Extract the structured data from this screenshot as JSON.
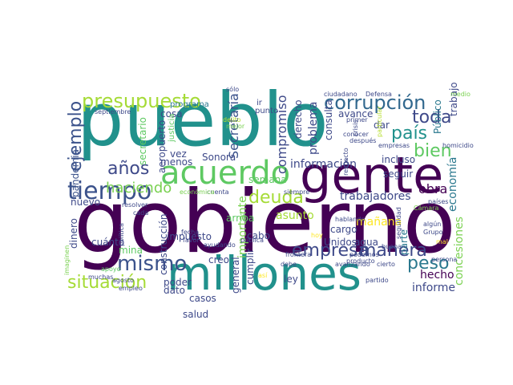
{
  "words": [
    {
      "text": "gobierno",
      "color": "#440154"
    },
    {
      "text": "pueblo",
      "color": "#21918c"
    },
    {
      "text": "millones",
      "color": "#21918c"
    },
    {
      "text": "gente",
      "color": "#440154"
    },
    {
      "text": "acuerdo",
      "color": "#5ec962"
    },
    {
      "text": "tiempo",
      "color": "#3b528b"
    },
    {
      "text": "presupuesto",
      "color": "#a5db36"
    },
    {
      "text": "corrupción",
      "color": "#31688e"
    },
    {
      "text": "mismo",
      "color": "#3b528b"
    },
    {
      "text": "empresa",
      "color": "#3e4989"
    },
    {
      "text": "manera",
      "color": "#3e4989"
    },
    {
      "text": "situación",
      "color": "#a5db36"
    },
    {
      "text": "bien",
      "color": "#5ec962"
    },
    {
      "text": "país",
      "color": "#21918c"
    },
    {
      "text": "toda",
      "color": "#3e4989"
    },
    {
      "text": "ejemplo",
      "color": "#3b528b"
    },
    {
      "text": "años",
      "color": "#3e4989"
    },
    {
      "text": "deuda",
      "color": "#a5db36"
    },
    {
      "text": "peso",
      "color": "#2a788e"
    },
    {
      "text": "haciendo",
      "color": "#7ad151"
    },
    {
      "text": "Secretaría",
      "color": "#3b528b"
    },
    {
      "text": "compromiso",
      "color": "#3e4989"
    },
    {
      "text": "obra",
      "color": "#440154"
    },
    {
      "text": "importante",
      "color": "#7ad151"
    },
    {
      "text": "trabajadores",
      "color": "#3e4989"
    },
    {
      "text": "asunto",
      "color": "#a5db36"
    },
    {
      "text": "mañana",
      "color": "#fde725"
    },
    {
      "text": "hecho",
      "color": "#440154"
    },
    {
      "text": "informe",
      "color": "#3e4989"
    },
    {
      "text": "economía",
      "color": "#2a788e"
    },
    {
      "text": "concesiones",
      "color": "#7ad151"
    },
    {
      "text": "información",
      "color": "#3e4989"
    },
    {
      "text": "problema",
      "color": "#3e4989"
    },
    {
      "text": "pandemia",
      "color": "#3b528b"
    },
    {
      "text": "secretario",
      "color": "#5ec962"
    },
    {
      "text": "aeropuerto",
      "color": "#3e4989"
    },
    {
      "text": "construcción",
      "color": "#3e4989"
    },
    {
      "text": "Sonora",
      "color": "#3e4989"
    },
    {
      "text": "seguir",
      "color": "#3e4989"
    },
    {
      "text": "trabajo",
      "color": "#3e4989"
    },
    {
      "text": "Público",
      "color": "#2a788e"
    },
    {
      "text": "incluso",
      "color": "#3e4989"
    },
    {
      "text": "nuevo",
      "color": "#3e4989"
    },
    {
      "text": "impuesto",
      "color": "#3e4989"
    },
    {
      "text": "derecho",
      "color": "#3e4989"
    },
    {
      "text": "consulta",
      "color": "#3e4989"
    },
    {
      "text": "avance",
      "color": "#3e4989"
    },
    {
      "text": "dar",
      "color": "#3e4989"
    },
    {
      "text": "creo",
      "color": "#3e4989"
    },
    {
      "text": "casos",
      "color": "#3e4989"
    },
    {
      "text": "salud",
      "color": "#3e4989"
    },
    {
      "text": "cabo",
      "color": "#3e4989"
    },
    {
      "text": "cargo",
      "color": "#3e4989"
    },
    {
      "text": "Unidos",
      "color": "#3e4989"
    },
    {
      "text": "agua",
      "color": "#3e4989"
    },
    {
      "text": "parte",
      "color": "#2a788e"
    },
    {
      "text": "vez",
      "color": "#3e4989"
    },
    {
      "text": "menos",
      "color": "#3e4989"
    },
    {
      "text": "mina",
      "color": "#5ec962"
    },
    {
      "text": "dinero",
      "color": "#3e4989"
    },
    {
      "text": "cuánto",
      "color": "#3e4989"
    },
    {
      "text": "ley",
      "color": "#3e4989"
    },
    {
      "text": "poder",
      "color": "#3e4989"
    },
    {
      "text": "dato",
      "color": "#3e4989"
    },
    {
      "text": "general",
      "color": "#3e4989"
    },
    {
      "text": "cumplir",
      "color": "#3e4989"
    },
    {
      "text": "semana",
      "color": "#5ec962"
    },
    {
      "text": "arriba",
      "color": "#5ec962"
    },
    {
      "text": "cosa",
      "color": "#3e4989"
    },
    {
      "text": "programa",
      "color": "#2a788e"
    },
    {
      "text": "ir",
      "color": "#3e4989"
    },
    {
      "text": "punto",
      "color": "#3e4989"
    },
    {
      "text": "justicia",
      "color": "#5ec962"
    },
    {
      "text": "septiembre",
      "color": "#3e4989"
    },
    {
      "text": "sólo",
      "color": "#3e4989"
    },
    {
      "text": "ciudadano",
      "color": "#3e4989"
    },
    {
      "text": "Defensa",
      "color": "#3e4989"
    },
    {
      "text": "medio",
      "color": "#7ad151"
    },
    {
      "text": "mejor",
      "color": "#7ad151"
    },
    {
      "text": "delito",
      "color": "#b5de2b"
    },
    {
      "text": "particular",
      "color": "#b5de2b"
    },
    {
      "text": "primer",
      "color": "#3e4989"
    },
    {
      "text": "conocer",
      "color": "#3e4989"
    },
    {
      "text": "después",
      "color": "#3e4989"
    },
    {
      "text": "empresas",
      "color": "#3e4989"
    },
    {
      "text": "respecto",
      "color": "#3e4989"
    },
    {
      "text": "homicidio",
      "color": "#3e4989"
    },
    {
      "text": "crisis",
      "color": "#3e4989"
    },
    {
      "text": "siempre",
      "color": "#3e4989"
    },
    {
      "text": "cuenta",
      "color": "#3e4989"
    },
    {
      "text": "económica",
      "color": "#7ad151"
    },
    {
      "text": "países",
      "color": "#3e4989"
    },
    {
      "text": "Cámara",
      "color": "#7ad151"
    },
    {
      "text": "resolver",
      "color": "#3e4989"
    },
    {
      "text": "cada",
      "color": "#3e4989"
    },
    {
      "text": "política",
      "color": "#3e4989"
    },
    {
      "text": "hablando",
      "color": "#3e4989"
    },
    {
      "text": "algún",
      "color": "#3e4989"
    },
    {
      "text": "Grupo",
      "color": "#3e4989"
    },
    {
      "text": "apoyo",
      "color": "#5ec962"
    },
    {
      "text": "agosto",
      "color": "#3e4989"
    },
    {
      "text": "fecha",
      "color": "#3e4989"
    },
    {
      "text": "favor",
      "color": "#3e4989"
    },
    {
      "text": "empleo",
      "color": "#3e4989"
    },
    {
      "text": "ayudando",
      "color": "#3e4989"
    },
    {
      "text": "pública",
      "color": "#3e4989"
    },
    {
      "text": "frontera",
      "color": "#3e4989"
    },
    {
      "text": "muchas",
      "color": "#3e4989"
    },
    {
      "text": "debe",
      "color": "#3e4989"
    },
    {
      "text": "podemos",
      "color": "#3e4989"
    },
    {
      "text": "producto",
      "color": "#3e4989"
    },
    {
      "text": "buena",
      "color": "#3e4989"
    },
    {
      "text": "persona",
      "color": "#3e4989"
    },
    {
      "text": "avanzando",
      "color": "#3e4989"
    },
    {
      "text": "cierto",
      "color": "#3e4989"
    },
    {
      "text": "partido",
      "color": "#3e4989"
    },
    {
      "text": "seguridad",
      "color": "#3e4989"
    },
    {
      "text": "imaginen",
      "color": "#7ad151"
    },
    {
      "text": "hoy",
      "color": "#fde725"
    },
    {
      "text": "así",
      "color": "#fde725"
    },
    {
      "text": "mal",
      "color": "#fde725"
    }
  ]
}
